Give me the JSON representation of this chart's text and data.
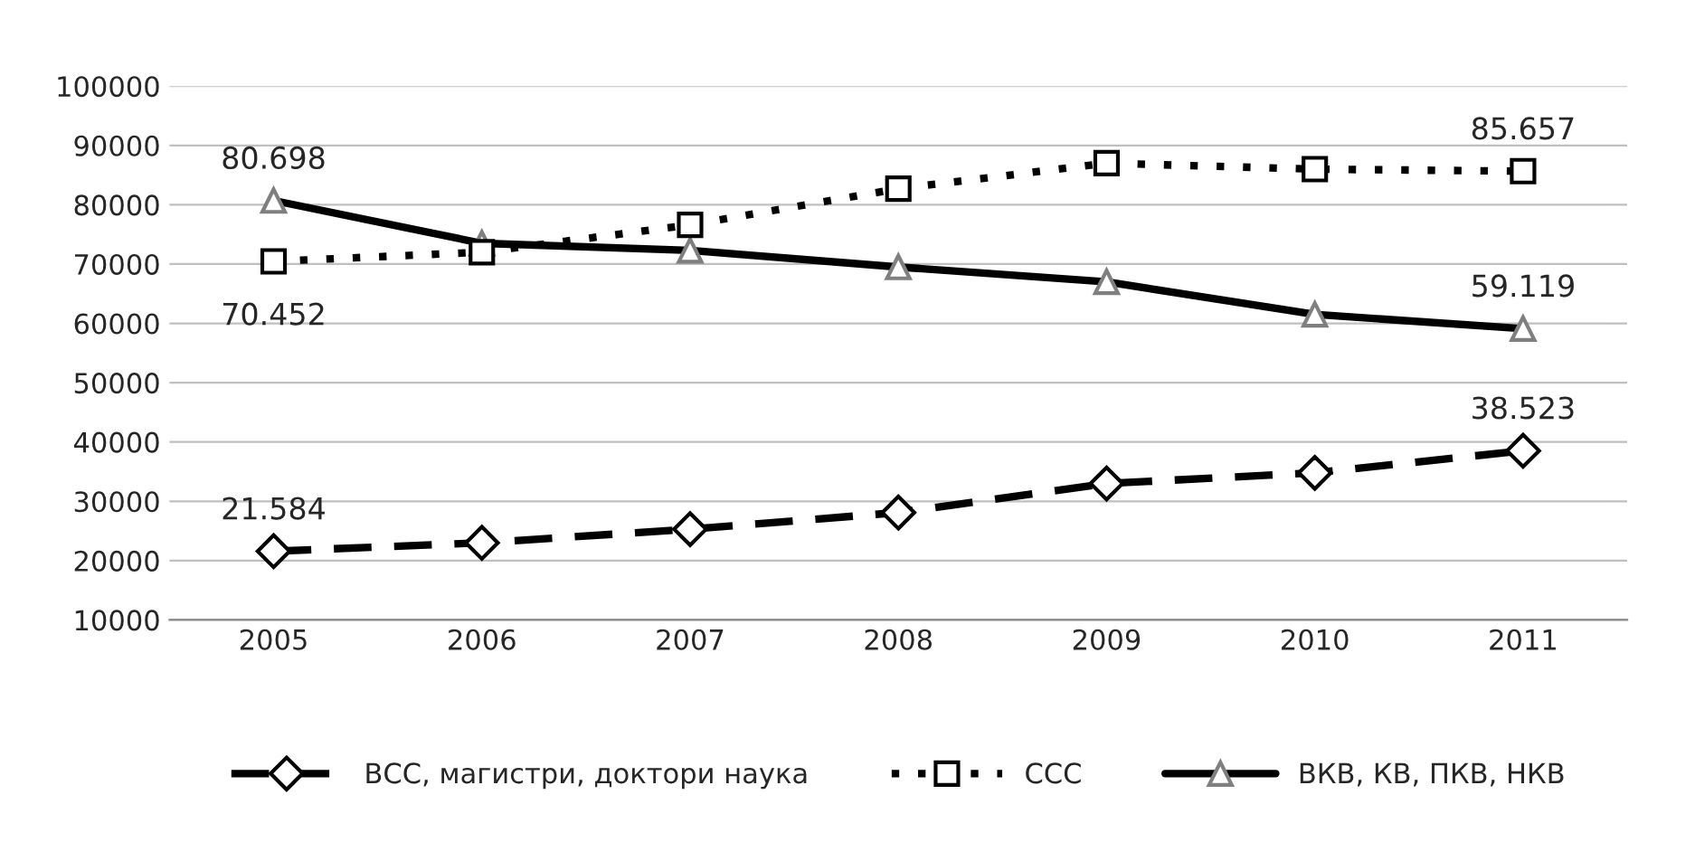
{
  "chart_data": {
    "type": "line",
    "categories": [
      "2005",
      "2006",
      "2007",
      "2008",
      "2009",
      "2010",
      "2011"
    ],
    "series": [
      {
        "name": "ВСС, магистри, доктори наука",
        "color": "#000000",
        "marker": "diamond",
        "line_style": "dashed",
        "values": [
          21584,
          23000,
          25300,
          28100,
          33000,
          34800,
          38523
        ]
      },
      {
        "name": "ССС",
        "color": "#000000",
        "marker": "square",
        "line_style": "dotted",
        "values": [
          70452,
          72000,
          76600,
          82700,
          87000,
          86000,
          85657
        ]
      },
      {
        "name": "ВКВ, КВ, ПКВ, НКВ",
        "color": "#000000",
        "marker": "triangle",
        "line_style": "solid",
        "values": [
          80698,
          73500,
          72300,
          69500,
          67000,
          61500,
          59119
        ]
      }
    ],
    "ylim": [
      10000,
      100000
    ],
    "yticks": [
      10000,
      20000,
      30000,
      40000,
      50000,
      60000,
      70000,
      80000,
      90000,
      100000
    ],
    "grid": "y",
    "legend": "bottom",
    "annotations": [
      {
        "text": "21.584",
        "x": "2005",
        "y": 21584
      },
      {
        "text": "38.523",
        "x": "2011",
        "y": 38523
      },
      {
        "text": "70.452",
        "x": "2005",
        "y": 70452
      },
      {
        "text": "85.657",
        "x": "2011",
        "y": 85657
      },
      {
        "text": "80.698",
        "x": "2005",
        "y": 80698
      },
      {
        "text": "59.119",
        "x": "2011",
        "y": 59119
      }
    ]
  }
}
